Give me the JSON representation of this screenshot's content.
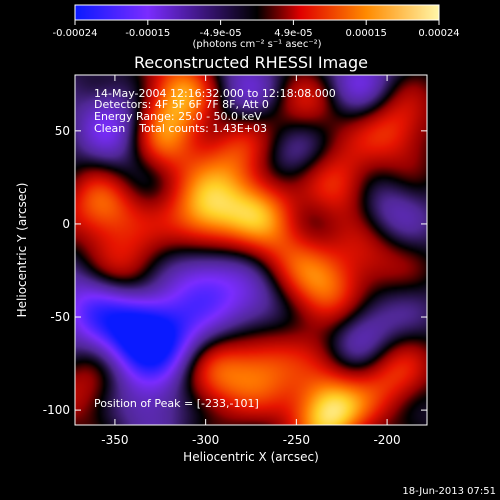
{
  "chart_data": {
    "type": "heatmap",
    "title": "Reconstructed RHESSI Image",
    "xlabel": "Heliocentric X (arcsec)",
    "ylabel": "Heliocentric Y (arcsec)",
    "xlim": [
      -372,
      -178
    ],
    "ylim": [
      -108,
      80
    ],
    "xticks": [
      -350,
      -300,
      -250,
      -200
    ],
    "yticks": [
      -100,
      -50,
      0,
      50
    ],
    "grid": false,
    "colorbar": {
      "placement": "top",
      "range": [
        -0.00024,
        0.00024
      ],
      "ticks": [
        "-0.00024",
        "-0.00015",
        "-4.9e-05",
        "4.9e-05",
        "0.00015",
        "0.00024"
      ],
      "units": "(photons cm⁻² s⁻¹ asec⁻²)",
      "colors": [
        "#0a1aff",
        "#7a2cff",
        "#000000",
        "#e00000",
        "#ff8a00",
        "#fff6a8"
      ]
    },
    "annotations": [
      "14-May-2004 12:16:32.000 to 12:18:08.000",
      "Detectors: 4F 5F 6F 7F 8F, Att 0",
      "Energy Range: 25.0 - 50.0 keV",
      "Clean    Total counts: 1.43E+03"
    ],
    "peak_label": "Position of Peak = [-233,-101]",
    "peak": [
      -233,
      -101
    ],
    "blobs": [
      {
        "x": -233,
        "y": -101,
        "v": 1.0
      },
      {
        "x": -300,
        "y": 5,
        "v": 0.85
      },
      {
        "x": -355,
        "y": 10,
        "v": 0.8
      },
      {
        "x": -315,
        "y": 70,
        "v": 0.75
      },
      {
        "x": -232,
        "y": -42,
        "v": 0.7
      },
      {
        "x": -268,
        "y": -75,
        "v": 0.65
      },
      {
        "x": -270,
        "y": 8,
        "v": 0.6
      },
      {
        "x": -225,
        "y": 22,
        "v": 0.6
      },
      {
        "x": -195,
        "y": 52,
        "v": 0.55
      },
      {
        "x": -210,
        "y": -15,
        "v": 0.5
      },
      {
        "x": -325,
        "y": 42,
        "v": 0.55
      },
      {
        "x": -295,
        "y": -85,
        "v": 0.5
      },
      {
        "x": -245,
        "y": 60,
        "v": 0.45
      },
      {
        "x": -340,
        "y": -25,
        "v": 0.4
      },
      {
        "x": -198,
        "y": -82,
        "v": 0.5
      },
      {
        "x": -365,
        "y": -90,
        "v": 0.35
      },
      {
        "x": -283,
        "y": 38,
        "v": 0.5
      },
      {
        "x": -255,
        "y": -20,
        "v": 0.45
      },
      {
        "x": -320,
        "y": -60,
        "v": -0.55
      },
      {
        "x": -338,
        "y": -58,
        "v": -0.95
      },
      {
        "x": -300,
        "y": -30,
        "v": -0.6
      },
      {
        "x": -350,
        "y": 55,
        "v": -0.45
      },
      {
        "x": -215,
        "y": -55,
        "v": -0.55
      },
      {
        "x": -205,
        "y": 5,
        "v": -0.45
      },
      {
        "x": -250,
        "y": 38,
        "v": -0.4
      },
      {
        "x": -270,
        "y": -45,
        "v": -0.45
      },
      {
        "x": -215,
        "y": 75,
        "v": -0.4
      },
      {
        "x": -365,
        "y": -45,
        "v": -0.5
      },
      {
        "x": -280,
        "y": 72,
        "v": -0.35
      },
      {
        "x": -330,
        "y": -95,
        "v": -0.4
      },
      {
        "x": -345,
        "y": 25,
        "v": -0.35
      }
    ]
  },
  "footer": {
    "timestamp": "18-Jun-2013 07:51"
  }
}
